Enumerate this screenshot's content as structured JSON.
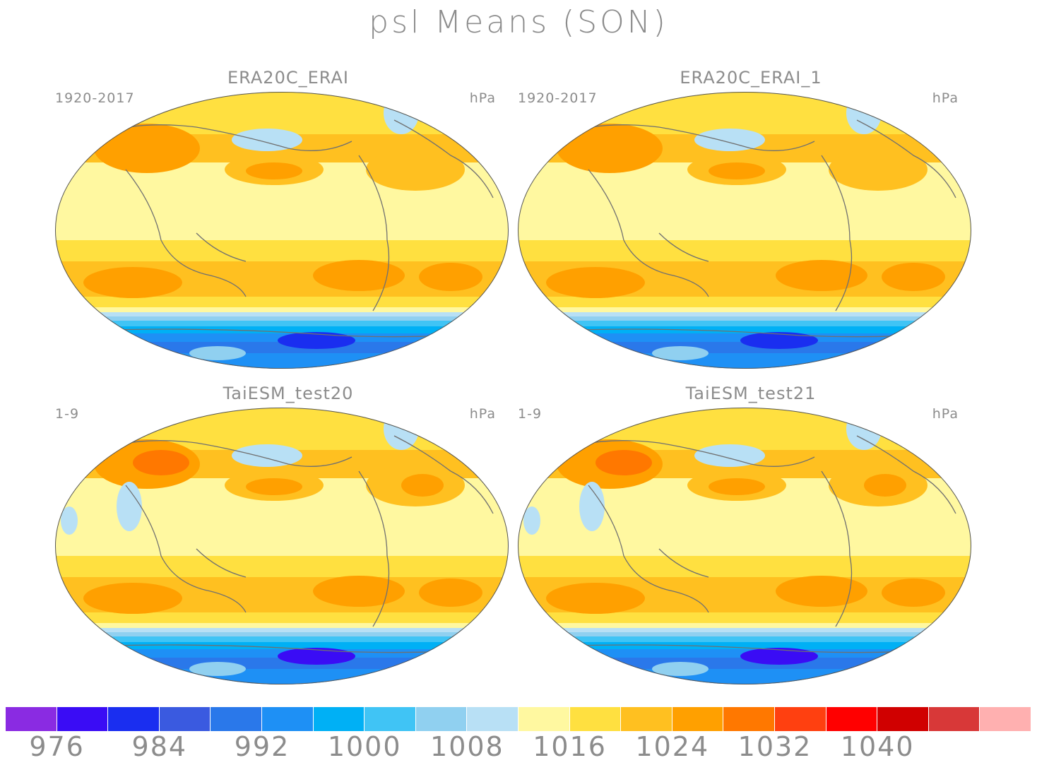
{
  "title": "psl Means (SON)",
  "panels": [
    {
      "title": "ERA20C_ERAI",
      "left_label": "1920-2017",
      "units": "hPa"
    },
    {
      "title": "ERA20C_ERAI_1",
      "left_label": "1920-2017",
      "units": "hPa"
    },
    {
      "title": "TaiESM_test20",
      "left_label": "1-9",
      "units": "hPa"
    },
    {
      "title": "TaiESM_test21",
      "left_label": "1-9",
      "units": "hPa"
    }
  ],
  "colorbar": {
    "colors": [
      "#8a2be2",
      "#3a0cf5",
      "#1a2ef0",
      "#3a5ae0",
      "#2a78ea",
      "#1e90f5",
      "#00b0f5",
      "#40c4f5",
      "#90d0f0",
      "#b8e0f5",
      "#fff8a0",
      "#ffe040",
      "#ffc020",
      "#ffa000",
      "#ff7800",
      "#ff4010",
      "#ff0000",
      "#d00000",
      "#d83838",
      "#ffb0b0"
    ],
    "tick_labels": [
      "976",
      "984",
      "992",
      "1000",
      "1008",
      "1016",
      "1024",
      "1032",
      "1040"
    ]
  }
}
